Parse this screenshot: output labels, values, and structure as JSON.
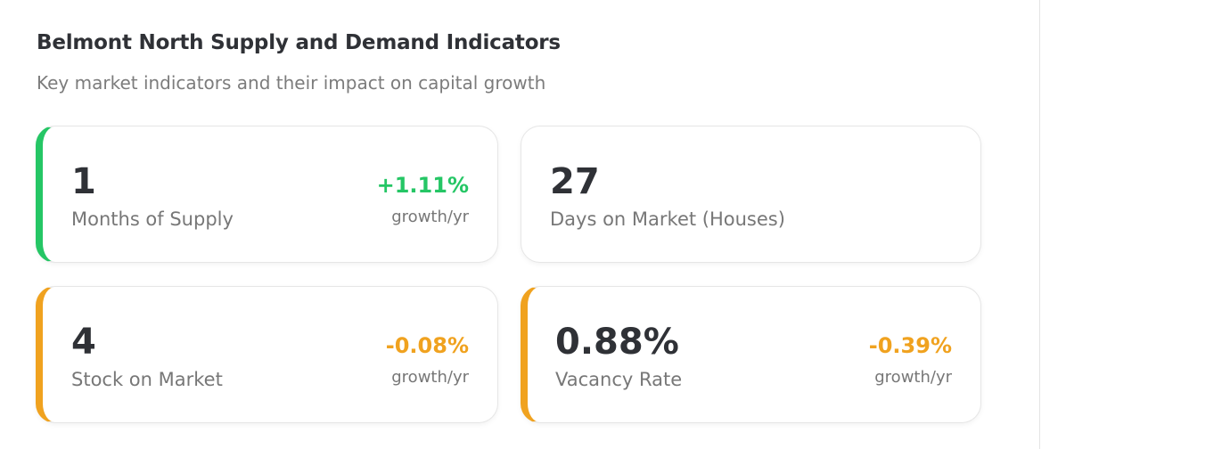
{
  "section": {
    "title": "Belmont North Supply and Demand Indicators",
    "subtitle": "Key market indicators and their impact on capital growth"
  },
  "colors": {
    "positive": "#25c665",
    "negative": "#f0a21f",
    "text_primary": "#2f3136",
    "text_secondary": "#777777"
  },
  "indicators": [
    {
      "value": "1",
      "label": "Months of Supply",
      "growth": "+1.11%",
      "growth_label": "growth/yr",
      "accent": "green"
    },
    {
      "value": "27",
      "label": "Days on Market (Houses)",
      "growth": "",
      "growth_label": "",
      "accent": "none"
    },
    {
      "value": "4",
      "label": "Stock on Market",
      "growth": "-0.08%",
      "growth_label": "growth/yr",
      "accent": "orange"
    },
    {
      "value": "0.88%",
      "label": "Vacancy Rate",
      "growth": "-0.39%",
      "growth_label": "growth/yr",
      "accent": "orange"
    }
  ]
}
